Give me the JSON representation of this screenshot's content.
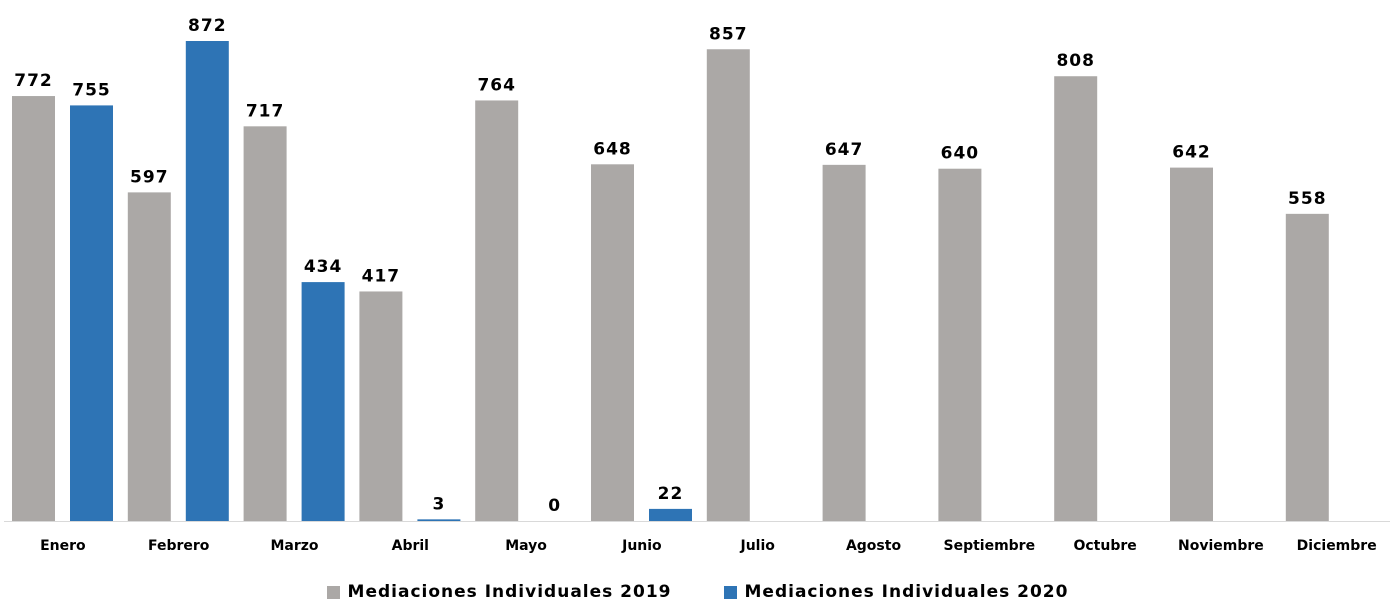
{
  "chart_data": {
    "type": "bar",
    "categories": [
      "Enero",
      "Febrero",
      "Marzo",
      "Abril",
      "Mayo",
      "Junio",
      "Julio",
      "Agosto",
      "Septiembre",
      "Octubre",
      "Noviembre",
      "Diciembre"
    ],
    "series": [
      {
        "name": "Mediaciones Individuales 2019",
        "color": "#ABA8A6",
        "values": [
          772,
          597,
          717,
          417,
          764,
          648,
          857,
          647,
          640,
          808,
          642,
          558
        ]
      },
      {
        "name": "Mediaciones Individuales 2020",
        "color": "#2E74B5",
        "values": [
          755,
          872,
          434,
          3,
          0,
          22,
          null,
          null,
          null,
          null,
          null,
          null
        ]
      }
    ],
    "title": "",
    "xlabel": "",
    "ylabel": "",
    "ylim": [
      0,
      900
    ],
    "grid": false,
    "data_labels": true,
    "legend_position": "bottom"
  }
}
